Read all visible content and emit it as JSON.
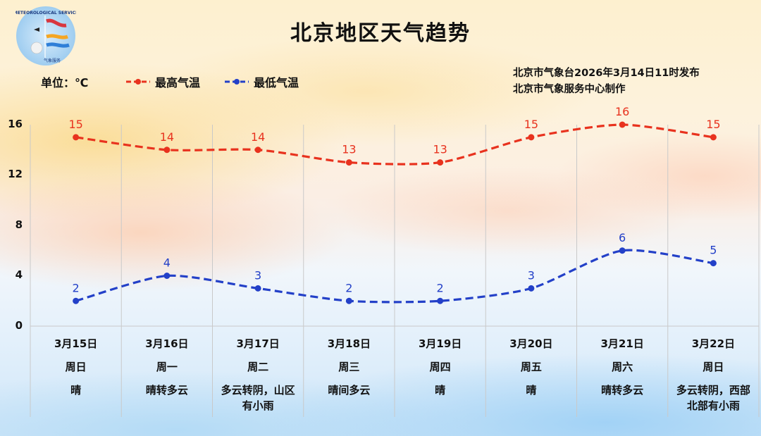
{
  "header": {
    "title": "北京地区天气趋势",
    "unit_label": "单位：℃",
    "issuer_line1": "北京市气象台2026年3月14日11时发布",
    "issuer_line2": "北京市气象服务中心制作"
  },
  "logo": {
    "icon": "beijing-meteorological-service-logo",
    "text_top": "METEOROLOGICAL SERVICE",
    "text_bottom": "BEIJING 气象服务"
  },
  "legend": [
    {
      "label": "最高气温",
      "color": "#e8321e"
    },
    {
      "label": "最低气温",
      "color": "#2340c8"
    }
  ],
  "columns": [
    {
      "date": "3月15日",
      "weekday": "周日",
      "weather": [
        "晴"
      ]
    },
    {
      "date": "3月16日",
      "weekday": "周一",
      "weather": [
        "晴转多云"
      ]
    },
    {
      "date": "3月17日",
      "weekday": "周二",
      "weather": [
        "多云转阴，山区",
        "有小雨"
      ]
    },
    {
      "date": "3月18日",
      "weekday": "周三",
      "weather": [
        "晴间多云"
      ]
    },
    {
      "date": "3月19日",
      "weekday": "周四",
      "weather": [
        "晴"
      ]
    },
    {
      "date": "3月20日",
      "weekday": "周五",
      "weather": [
        "晴"
      ]
    },
    {
      "date": "3月21日",
      "weekday": "周六",
      "weather": [
        "晴转多云"
      ]
    },
    {
      "date": "3月22日",
      "weekday": "周日",
      "weather": [
        "多云转阴，西部",
        "北部有小雨"
      ]
    }
  ],
  "chart_data": {
    "type": "line",
    "title": "北京地区天气趋势",
    "xlabel": "",
    "ylabel": "单位：℃",
    "categories": [
      "3月15日",
      "3月16日",
      "3月17日",
      "3月18日",
      "3月19日",
      "3月20日",
      "3月21日",
      "3月22日"
    ],
    "series": [
      {
        "name": "最高气温",
        "color": "#e8321e",
        "line_style": "dashed",
        "values": [
          15,
          14,
          14,
          13,
          13,
          15,
          16,
          15
        ]
      },
      {
        "name": "最低气温",
        "color": "#2340c8",
        "line_style": "dashed",
        "values": [
          2,
          4,
          3,
          2,
          2,
          3,
          6,
          5
        ]
      }
    ],
    "ylim": [
      0,
      16
    ],
    "yticks": [
      0,
      4,
      8,
      12,
      16
    ],
    "grid": {
      "vertical": true,
      "horizontal": false
    },
    "data_labels": true,
    "legend_position": "top-left"
  }
}
